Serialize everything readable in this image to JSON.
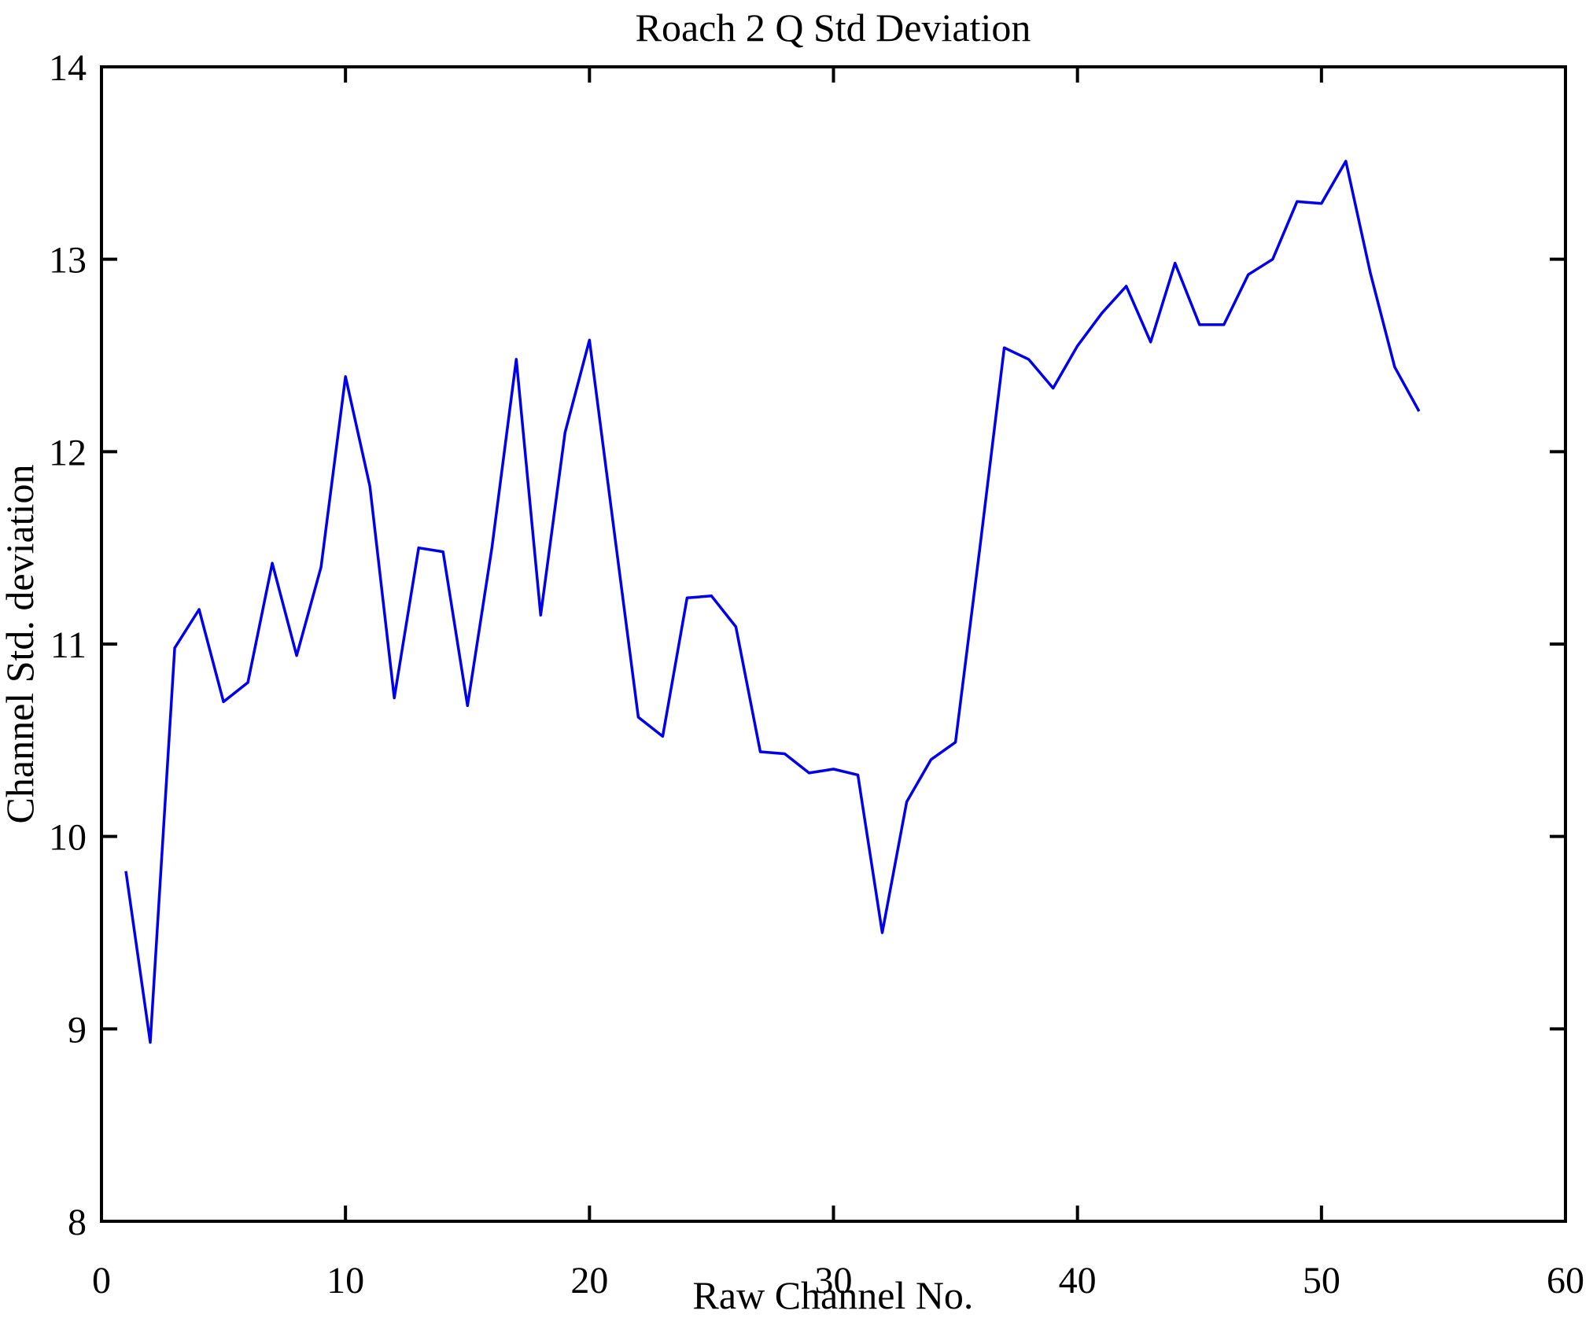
{
  "figure": {
    "title": "Roach 2 Q Std Deviation"
  },
  "chart_data": {
    "type": "line",
    "title": "Roach 2 Q Std Deviation",
    "xlabel": "Raw Channel No.",
    "ylabel": "Channel Std. deviation",
    "xlim": [
      0,
      60
    ],
    "ylim": [
      8,
      14
    ],
    "xticks": [
      0,
      10,
      20,
      30,
      40,
      50,
      60
    ],
    "yticks": [
      8,
      9,
      10,
      11,
      12,
      13,
      14
    ],
    "grid": false,
    "legend_position": "none",
    "line_color": "#0000EE",
    "axis_color": "#000000",
    "background_color": "#FFFFFF",
    "series": [
      {
        "name": "Channel Std. deviation",
        "x": [
          1,
          2,
          3,
          4,
          5,
          6,
          7,
          8,
          9,
          10,
          11,
          12,
          13,
          14,
          15,
          16,
          17,
          18,
          19,
          20,
          21,
          22,
          23,
          24,
          25,
          26,
          27,
          28,
          29,
          30,
          31,
          32,
          33,
          34,
          35,
          36,
          37,
          38,
          39,
          40,
          41,
          42,
          43,
          44,
          45,
          46,
          47,
          48,
          49,
          50,
          51,
          52,
          53,
          54
        ],
        "y": [
          9.82,
          8.93,
          10.98,
          11.18,
          10.7,
          10.8,
          11.42,
          10.94,
          11.4,
          12.39,
          11.82,
          10.72,
          11.5,
          11.48,
          10.68,
          11.5,
          12.48,
          11.15,
          12.1,
          12.58,
          11.6,
          10.62,
          10.52,
          11.24,
          11.25,
          11.09,
          10.44,
          10.43,
          10.33,
          10.35,
          10.32,
          9.5,
          10.18,
          10.4,
          10.49,
          11.5,
          12.54,
          12.48,
          12.33,
          12.55,
          12.72,
          12.86,
          12.57,
          12.98,
          12.66,
          12.66,
          12.92,
          13.0,
          13.3,
          13.29,
          13.51,
          12.93,
          12.44,
          12.21
        ]
      }
    ]
  }
}
